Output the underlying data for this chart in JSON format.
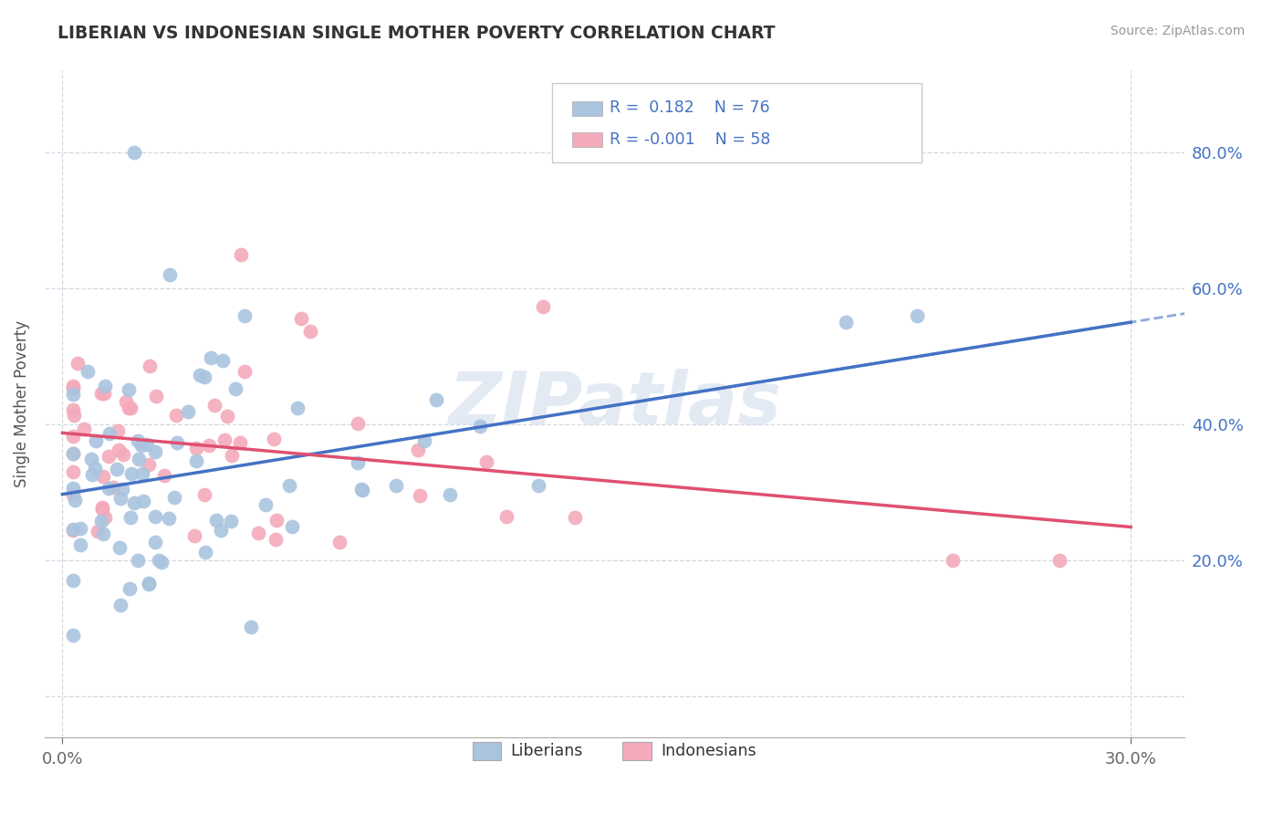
{
  "title": "LIBERIAN VS INDONESIAN SINGLE MOTHER POVERTY CORRELATION CHART",
  "source": "Source: ZipAtlas.com",
  "ylabel": "Single Mother Poverty",
  "blue_dot_color": "#aac4df",
  "pink_dot_color": "#f4aabb",
  "blue_line_color": "#4472c4",
  "pink_line_color": "#e05070",
  "axis_label_color": "#4472c4",
  "watermark_color": "#cddaeb",
  "watermark_text": "ZIPatlas",
  "title_color": "#333333",
  "source_color": "#999999",
  "r_lib": 0.182,
  "n_lib": 76,
  "r_ind": -0.001,
  "n_ind": 58,
  "xlim_min": -0.005,
  "xlim_max": 0.315,
  "ylim_min": -0.06,
  "ylim_max": 0.92,
  "x_ticks": [
    0.0,
    0.3
  ],
  "y_ticks": [
    0.0,
    0.2,
    0.4,
    0.6,
    0.8
  ],
  "lib_seed": 7,
  "ind_seed": 13
}
